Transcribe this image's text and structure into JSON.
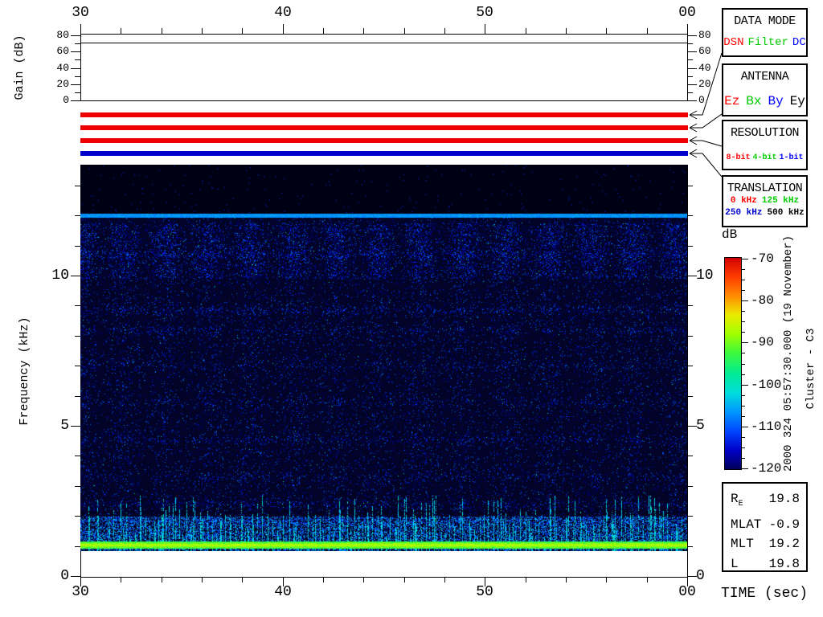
{
  "gain_panel": {
    "ylabel": "Gain (dB)",
    "tick_labels": [
      "0",
      "20",
      "40",
      "60",
      "80"
    ],
    "gain_db": 70
  },
  "time_axis": {
    "tick_labels": [
      "30",
      "40",
      "50",
      "00"
    ],
    "xlabel": "TIME (sec)"
  },
  "freq_axis": {
    "ylabel": "Frequency (kHz)",
    "tick_labels": [
      "0",
      "5",
      "10"
    ]
  },
  "status_bars": {
    "items": [
      {
        "name": "data-mode-bar",
        "value": "DSN",
        "color": "#ee0000"
      },
      {
        "name": "antenna-bar",
        "value": "Ez",
        "color": "#ee0000"
      },
      {
        "name": "resolution-bar",
        "value": "8-bit",
        "color": "#ee0000"
      },
      {
        "name": "translation-bar",
        "value": "250 kHz",
        "color": "#0000cc"
      }
    ]
  },
  "legend_boxes": [
    {
      "title": "DATA MODE",
      "items": [
        {
          "label": "DSN",
          "color": "#ff0000"
        },
        {
          "label": "Filter",
          "color": "#00cc00"
        },
        {
          "label": "DC",
          "color": "#0000ff"
        }
      ]
    },
    {
      "title": "ANTENNA",
      "items": [
        {
          "label": "Ez",
          "color": "#ff0000"
        },
        {
          "label": "Bx",
          "color": "#00cc00"
        },
        {
          "label": "By",
          "color": "#0000ff"
        },
        {
          "label": "Ey",
          "color": "#000000"
        }
      ]
    },
    {
      "title": "RESOLUTION",
      "items": [
        {
          "label": "8-bit",
          "color": "#ff0000"
        },
        {
          "label": "4-bit",
          "color": "#00cc00"
        },
        {
          "label": "1-bit",
          "color": "#0000ff"
        }
      ]
    },
    {
      "title": "TRANSLATION",
      "items": [
        {
          "label": "0 kHz",
          "color": "#ff0000"
        },
        {
          "label": "125 kHz",
          "color": "#00cc00"
        },
        {
          "label": "250 kHz",
          "color": "#0000cc"
        },
        {
          "label": "500 kHz",
          "color": "#000000"
        }
      ]
    }
  ],
  "colorbar": {
    "label": "dB",
    "major_tick_labels": [
      "-70",
      "-80",
      "-90",
      "-100",
      "-110",
      "-120"
    ],
    "max_db": -70,
    "min_db": -120,
    "gradient_top_to_bottom": [
      "#d20000",
      "#ff3c00",
      "#ff8c00",
      "#ebeb00",
      "#a0ff00",
      "#3cfa3c",
      "#00eb96",
      "#00dcdc",
      "#0096ff",
      "#0046ff",
      "#0000c8",
      "#00005a"
    ]
  },
  "side_annotations": {
    "datetime": "2000 324 05:57:30.000 (19 November)",
    "spacecraft": "Cluster - C3"
  },
  "info_table": {
    "rows": [
      {
        "label": "R",
        "sub": "E",
        "value": "19.8"
      },
      {
        "label": "MLAT",
        "sub": "",
        "value": "-0.9"
      },
      {
        "label": "MLT",
        "sub": "",
        "value": "19.2"
      },
      {
        "label": "L",
        "sub": "",
        "value": "19.8"
      }
    ]
  },
  "chart_data": {
    "type": "heatmap",
    "title": "Cluster C3 wideband (WBD) frequency-time spectrogram",
    "x": {
      "label": "TIME (sec)",
      "start_s": 30,
      "end_s": 60,
      "major_ticks_s": [
        30,
        40,
        50,
        60
      ],
      "major_tick_labels": [
        "30",
        "40",
        "50",
        "00"
      ],
      "minor_step_s": 2
    },
    "y": {
      "label": "Frequency (kHz)",
      "min_khz": 0,
      "max_khz": 13.7,
      "major_ticks_khz": [
        0,
        5,
        10
      ],
      "minor_step_khz": 1,
      "data_min_khz": 0.83,
      "data_max_khz": 13.69
    },
    "z": {
      "label": "dB",
      "min_db": -120,
      "max_db": -70
    },
    "gain_series": {
      "label": "Gain (dB)",
      "constant_value_db": 70,
      "ylim": [
        0,
        80
      ],
      "major_ticks_db": [
        0,
        20,
        40,
        60,
        80
      ]
    },
    "status": {
      "data_mode": "DSN",
      "antenna": "Ez",
      "resolution": "8-bit",
      "translation": "250 kHz"
    },
    "features": [
      {
        "kind": "background",
        "level_db": -120
      },
      {
        "kind": "quiet_zone",
        "f_min_khz": 12.06,
        "f_max_khz": 13.69
      },
      {
        "kind": "narrowband_emission",
        "f_khz": 12.0,
        "level_db": -104
      },
      {
        "kind": "broadband_speckle",
        "f_min_khz": 0.83,
        "f_max_khz": 12.0,
        "level_db_range": [
          -120,
          -105
        ]
      },
      {
        "kind": "enhanced_rows",
        "freqs_khz": [
          10.7,
          8.85,
          8.2,
          7.0,
          5.8,
          4.55,
          3.3,
          2.4,
          1.85
        ],
        "strengths": [
          0.9,
          1.0,
          0.7,
          0.5,
          0.5,
          0.8,
          0.6,
          0.7,
          1.2
        ]
      },
      {
        "kind": "periodic_time_clumps",
        "f_min_khz": 2.0,
        "f_max_khz": 11.75,
        "period_s": 2.1
      },
      {
        "kind": "impulsive_vertical_streaks",
        "f_min_khz": 0.83,
        "f_max_khz": 2.7,
        "level_db": -101
      },
      {
        "kind": "intense_band",
        "f_min_khz": 0.93,
        "f_max_khz": 1.15,
        "level_db_range": [
          -90,
          -78
        ]
      },
      {
        "kind": "dark_dashed_row",
        "f_khz": 2.1
      },
      {
        "kind": "low_frequency_cutoff",
        "f_khz": 0.83
      }
    ],
    "seed": 20001119
  }
}
